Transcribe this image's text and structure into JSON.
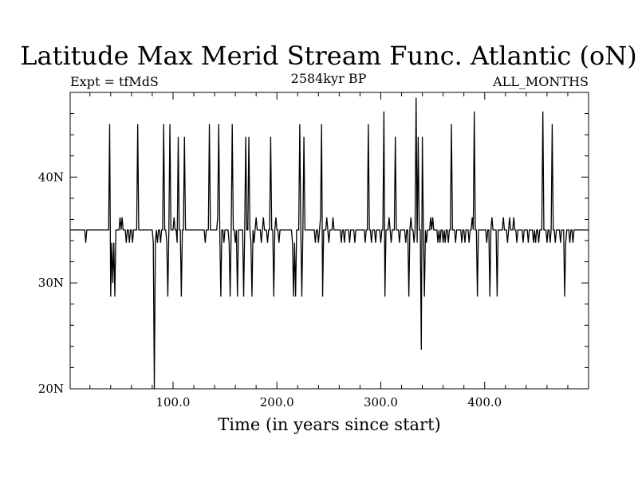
{
  "chart_data": {
    "type": "line",
    "title": "Latitude Max Merid Stream Func. Atlantic (oN)",
    "subtitle_left": "Expt = tfMdS",
    "subtitle_center": "2584kyr BP",
    "subtitle_right": "ALL_MONTHS",
    "xlabel": "Time (in years since start)",
    "ylabel": "",
    "xlim": [
      1,
      500
    ],
    "ylim": [
      20,
      48
    ],
    "x_ticks": [
      100,
      200,
      300,
      400
    ],
    "x_tick_labels": [
      "100.0",
      "200.0",
      "300.0",
      "400.0"
    ],
    "y_ticks": [
      20,
      30,
      40
    ],
    "y_tick_labels": [
      "20N",
      "30N",
      "40N"
    ],
    "grid": false,
    "baseline": 35.0,
    "series": [
      {
        "name": "",
        "color": "#000000",
        "events": [
          [
            16,
            33.8
          ],
          [
            39,
            45.0
          ],
          [
            40,
            28.7
          ],
          [
            41,
            33.8
          ],
          [
            42,
            30.0
          ],
          [
            43,
            33.8
          ],
          [
            44,
            28.7
          ],
          [
            48,
            35.0
          ],
          [
            49,
            36.2
          ],
          [
            50,
            35.0
          ],
          [
            51,
            36.2
          ],
          [
            54,
            35.0
          ],
          [
            55,
            33.8
          ],
          [
            58,
            33.8
          ],
          [
            61,
            33.8
          ],
          [
            66,
            45.0
          ],
          [
            67,
            35.0
          ],
          [
            70,
            35.0
          ],
          [
            80,
            35.0
          ],
          [
            81,
            33.8
          ],
          [
            82,
            20.0
          ],
          [
            83,
            33.8
          ],
          [
            85,
            33.8
          ],
          [
            88,
            33.8
          ],
          [
            91,
            45.0
          ],
          [
            92,
            35.0
          ],
          [
            94,
            33.8
          ],
          [
            95,
            28.7
          ],
          [
            97,
            45.0
          ],
          [
            98,
            35.0
          ],
          [
            101,
            36.2
          ],
          [
            104,
            33.8
          ],
          [
            105,
            43.8
          ],
          [
            106,
            35.0
          ],
          [
            108,
            28.7
          ],
          [
            111,
            43.8
          ],
          [
            113,
            35.0
          ],
          [
            131,
            33.8
          ],
          [
            135,
            45.0
          ],
          [
            136,
            35.0
          ],
          [
            140,
            35.0
          ],
          [
            143,
            36.2
          ],
          [
            144,
            45.0
          ],
          [
            145,
            35.0
          ],
          [
            146,
            28.7
          ],
          [
            149,
            33.8
          ],
          [
            154,
            33.8
          ],
          [
            155,
            28.7
          ],
          [
            157,
            45.0
          ],
          [
            158,
            35.0
          ],
          [
            160,
            33.8
          ],
          [
            162,
            28.7
          ],
          [
            164,
            35.0
          ],
          [
            168,
            28.7
          ],
          [
            170,
            43.8
          ],
          [
            172,
            35.0
          ],
          [
            173,
            43.8
          ],
          [
            175,
            33.8
          ],
          [
            176,
            28.7
          ],
          [
            178,
            33.8
          ],
          [
            180,
            36.2
          ],
          [
            185,
            33.8
          ],
          [
            187,
            36.2
          ],
          [
            191,
            33.8
          ],
          [
            194,
            43.8
          ],
          [
            196,
            35.0
          ],
          [
            197,
            28.7
          ],
          [
            199,
            36.2
          ],
          [
            202,
            33.8
          ],
          [
            215,
            33.8
          ],
          [
            216,
            28.7
          ],
          [
            217,
            33.8
          ],
          [
            218,
            28.7
          ],
          [
            219,
            35.0
          ],
          [
            222,
            45.0
          ],
          [
            223,
            35.0
          ],
          [
            224,
            28.7
          ],
          [
            226,
            43.8
          ],
          [
            228,
            35.0
          ],
          [
            237,
            33.8
          ],
          [
            240,
            33.8
          ],
          [
            242,
            36.2
          ],
          [
            243,
            45.0
          ],
          [
            244,
            28.7
          ],
          [
            245,
            35.0
          ],
          [
            248,
            36.2
          ],
          [
            250,
            33.8
          ],
          [
            254,
            36.2
          ],
          [
            256,
            35.0
          ],
          [
            262,
            33.8
          ],
          [
            265,
            33.8
          ],
          [
            270,
            33.8
          ],
          [
            275,
            33.8
          ],
          [
            285,
            33.8
          ],
          [
            288,
            45.0
          ],
          [
            289,
            35.0
          ],
          [
            291,
            33.8
          ],
          [
            295,
            33.8
          ],
          [
            300,
            33.8
          ],
          [
            303,
            46.2
          ],
          [
            304,
            28.7
          ],
          [
            306,
            35.0
          ],
          [
            308,
            36.2
          ],
          [
            310,
            33.8
          ],
          [
            314,
            43.8
          ],
          [
            316,
            35.0
          ],
          [
            318,
            33.8
          ],
          [
            324,
            33.8
          ],
          [
            327,
            28.7
          ],
          [
            329,
            36.2
          ],
          [
            332,
            33.8
          ],
          [
            334,
            47.5
          ],
          [
            335,
            33.8
          ],
          [
            336,
            43.8
          ],
          [
            338,
            35.0
          ],
          [
            339,
            23.7
          ],
          [
            340,
            43.8
          ],
          [
            342,
            28.7
          ],
          [
            344,
            33.8
          ],
          [
            346,
            35.0
          ],
          [
            348,
            36.2
          ],
          [
            350,
            36.2
          ],
          [
            352,
            35.0
          ],
          [
            355,
            33.8
          ],
          [
            357,
            33.8
          ],
          [
            360,
            33.8
          ],
          [
            362,
            33.8
          ],
          [
            365,
            33.8
          ],
          [
            368,
            45.0
          ],
          [
            369,
            35.0
          ],
          [
            372,
            33.8
          ],
          [
            378,
            33.8
          ],
          [
            381,
            33.8
          ],
          [
            385,
            33.8
          ],
          [
            388,
            36.2
          ],
          [
            390,
            46.2
          ],
          [
            391,
            35.0
          ],
          [
            393,
            28.7
          ],
          [
            395,
            35.0
          ],
          [
            402,
            33.8
          ],
          [
            405,
            28.7
          ],
          [
            407,
            36.2
          ],
          [
            410,
            35.0
          ],
          [
            412,
            28.7
          ],
          [
            414,
            35.0
          ],
          [
            418,
            36.2
          ],
          [
            422,
            33.8
          ],
          [
            424,
            36.2
          ],
          [
            428,
            36.2
          ],
          [
            431,
            33.8
          ],
          [
            437,
            33.8
          ],
          [
            442,
            33.8
          ],
          [
            447,
            33.8
          ],
          [
            449,
            33.8
          ],
          [
            452,
            33.8
          ],
          [
            456,
            46.2
          ],
          [
            457,
            35.0
          ],
          [
            460,
            33.8
          ],
          [
            463,
            33.8
          ],
          [
            465,
            45.0
          ],
          [
            466,
            35.0
          ],
          [
            468,
            33.8
          ],
          [
            473,
            33.8
          ],
          [
            477,
            28.7
          ],
          [
            478,
            33.8
          ],
          [
            482,
            33.8
          ],
          [
            485,
            33.8
          ]
        ]
      }
    ]
  }
}
